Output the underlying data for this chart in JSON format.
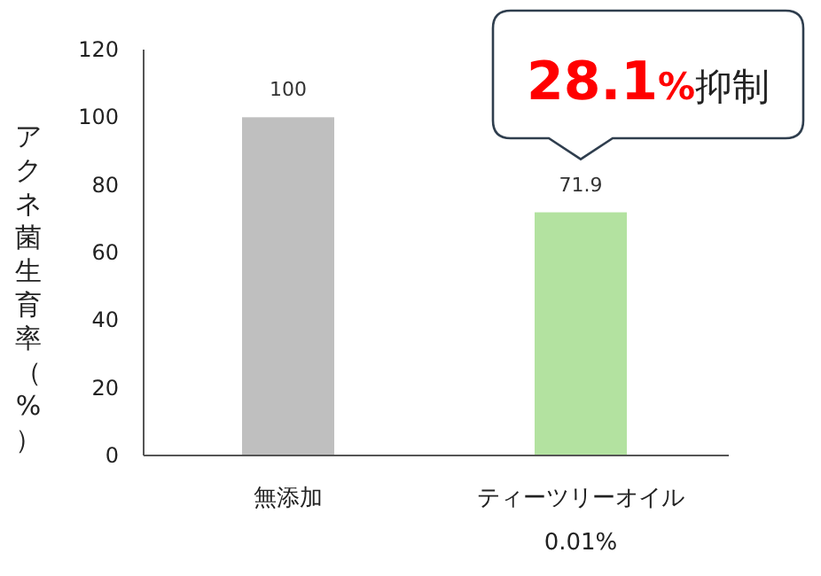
{
  "chart_data": {
    "type": "bar",
    "categories": [
      "無添加",
      "ティーツリーオイル\n0.01%"
    ],
    "values": [
      100,
      71.9
    ],
    "colors": [
      "#bfbfbf",
      "#b3e2a0"
    ],
    "ylabel": "アクネ菌生育率（%）",
    "ylim": [
      0,
      120
    ],
    "yticks": [
      0,
      20,
      40,
      60,
      80,
      100,
      120
    ],
    "data_labels": true,
    "annotations": [
      "28.1%抑制"
    ]
  }
}
